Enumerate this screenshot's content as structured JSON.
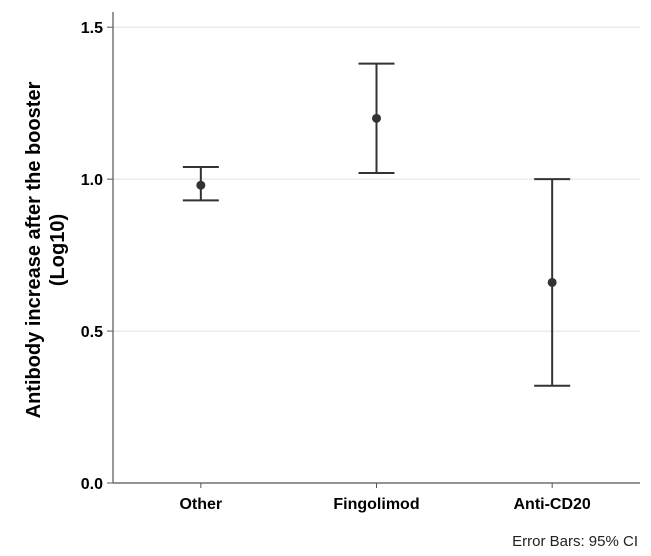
{
  "chart_data": {
    "type": "errorbar",
    "ylabel_lines": [
      "Antibody increase after the booster",
      "(Log10)"
    ],
    "xlabel": "",
    "categories": [
      "Other",
      "Fingolimod",
      "Anti-CD20"
    ],
    "ylim": [
      0,
      1.55
    ],
    "yticks": [
      0.0,
      0.5,
      1.0,
      1.5
    ],
    "ytick_labels": [
      "0.0",
      "0.5",
      "1.0",
      "1.5"
    ],
    "grid": "horizontal",
    "series": [
      {
        "means": [
          0.98,
          1.2,
          0.66
        ],
        "ci_lower": [
          0.93,
          1.02,
          0.32
        ],
        "ci_upper": [
          1.04,
          1.38,
          1.0
        ]
      }
    ],
    "footnote": "Error Bars: 95% CI",
    "colors": {
      "marker": "#333333",
      "errorbar": "#333333",
      "axis": "#555555",
      "grid": "#e2e2e2"
    }
  }
}
